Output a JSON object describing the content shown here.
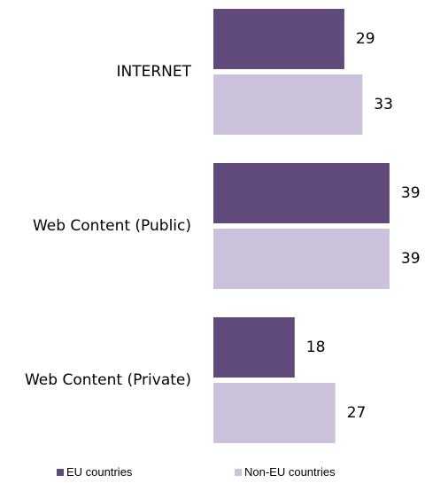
{
  "chart_data": {
    "type": "bar",
    "orientation": "horizontal",
    "categories": [
      "INTERNET",
      "Web Content (Public)",
      "Web Content (Private)"
    ],
    "series": [
      {
        "name": "EU countries",
        "values": [
          29,
          39,
          18
        ],
        "color": "#604a7b"
      },
      {
        "name": "Non-EU countries",
        "values": [
          33,
          39,
          27
        ],
        "color": "#ccc1da"
      }
    ],
    "xlim": [
      0,
      39
    ],
    "grid": false,
    "legend_position": "bottom",
    "data_labels": true
  }
}
